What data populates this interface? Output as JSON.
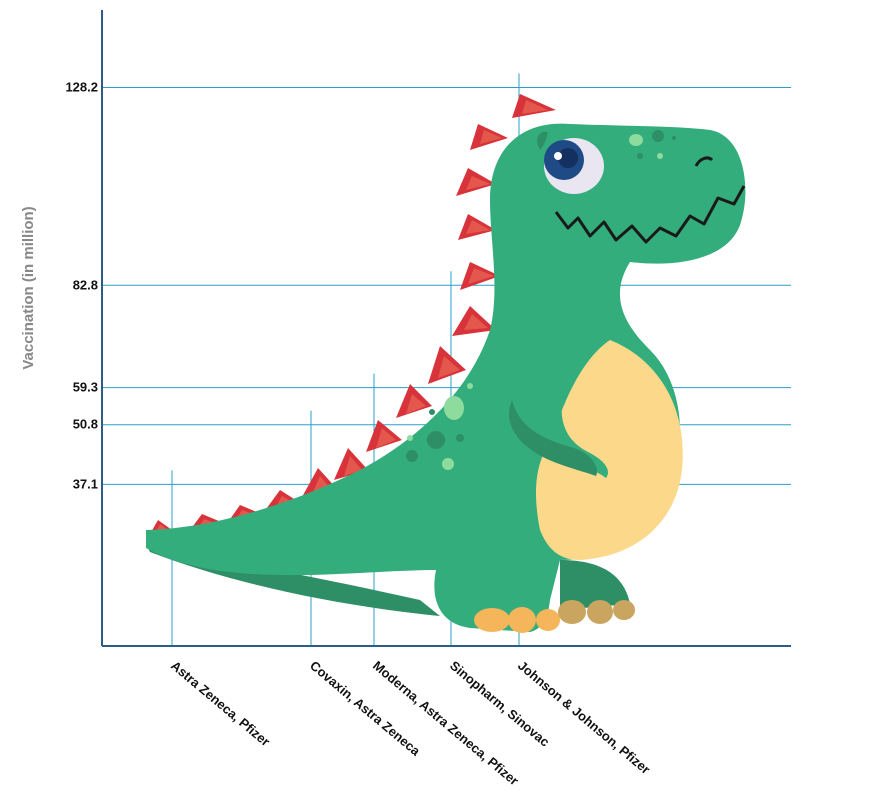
{
  "chart_data": {
    "type": "bar",
    "ylabel": "Vaccination (in million)",
    "categories": [
      "Astra Zeneca, Pfizer",
      "Covaxin, Astra Zeneca",
      "Moderna, Astra Zeneca, Pfizer",
      "Sinopharm, Sinovac",
      "Johnson & Johnson, Pfizer"
    ],
    "values": [
      37.1,
      50.8,
      59.3,
      82.8,
      128.2
    ],
    "yticks": [
      37.1,
      50.8,
      59.3,
      82.8,
      128.2
    ],
    "ylim": [
      0,
      146
    ],
    "grid": true,
    "colors": {
      "axis": "#2a5d8a",
      "gridline": "#2aa0c8",
      "dino_body": "#34ad7c",
      "dino_dark": "#2e8f66",
      "dino_belly": "#fcd98a",
      "dino_spikes": "#d8323a",
      "dino_spikes_inner": "#e4574c",
      "dino_claws": "#f5b55a"
    },
    "decoration": "dinosaur-illustration"
  }
}
